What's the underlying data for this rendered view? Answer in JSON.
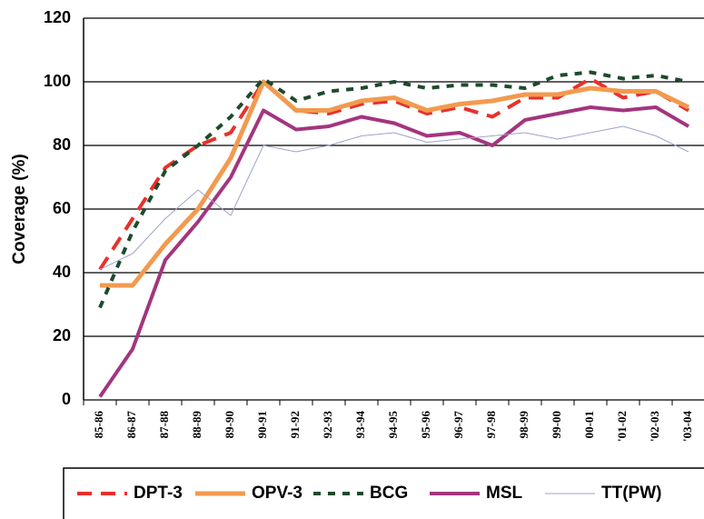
{
  "chart_data": {
    "type": "line",
    "y_label": "Coverage (%)",
    "categories": [
      "85-86",
      "86-87",
      "87-88",
      "88-89",
      "89-90",
      "90-91",
      "91-92",
      "92-93",
      "93-94",
      "94-95",
      "95-96",
      "96-97",
      "97-98",
      "98-99",
      "99-00",
      "00-01",
      "'01-02",
      "'02-03",
      "'03-04"
    ],
    "ylim": [
      0,
      120
    ],
    "yticks": [
      0,
      20,
      40,
      60,
      80,
      100,
      120
    ],
    "grid": true,
    "series": [
      {
        "name": "DPT-3",
        "color": "#e8312a",
        "width": 4,
        "dash": "16,10",
        "values": [
          41,
          57,
          73,
          80,
          84,
          100,
          91,
          90,
          93,
          94,
          90,
          92,
          89,
          95,
          95,
          101,
          95,
          97,
          91
        ]
      },
      {
        "name": "OPV-3",
        "color": "#f29a4f",
        "width": 5,
        "dash": "none",
        "values": [
          36,
          36,
          49,
          60,
          76,
          100,
          91,
          91,
          94,
          95,
          91,
          93,
          94,
          96,
          96,
          98,
          97,
          97,
          92
        ]
      },
      {
        "name": "BCG",
        "color": "#1e4a2c",
        "width": 4,
        "dash": "8,8",
        "values": [
          29,
          53,
          72,
          80,
          89,
          101,
          94,
          97,
          98,
          100,
          98,
          99,
          99,
          98,
          102,
          103,
          101,
          102,
          100
        ]
      },
      {
        "name": "MSL",
        "color": "#a3357e",
        "width": 4,
        "dash": "none",
        "values": [
          1,
          16,
          44,
          56,
          70,
          91,
          85,
          86,
          89,
          87,
          83,
          84,
          80,
          88,
          90,
          92,
          91,
          92,
          86
        ]
      },
      {
        "name": "TT(PW)",
        "color": "#9ea3cc",
        "width": 1,
        "dash": "none",
        "values": [
          41,
          46,
          57,
          66,
          58,
          80,
          78,
          80,
          83,
          84,
          81,
          82,
          83,
          84,
          82,
          84,
          86,
          83,
          78
        ]
      }
    ]
  }
}
